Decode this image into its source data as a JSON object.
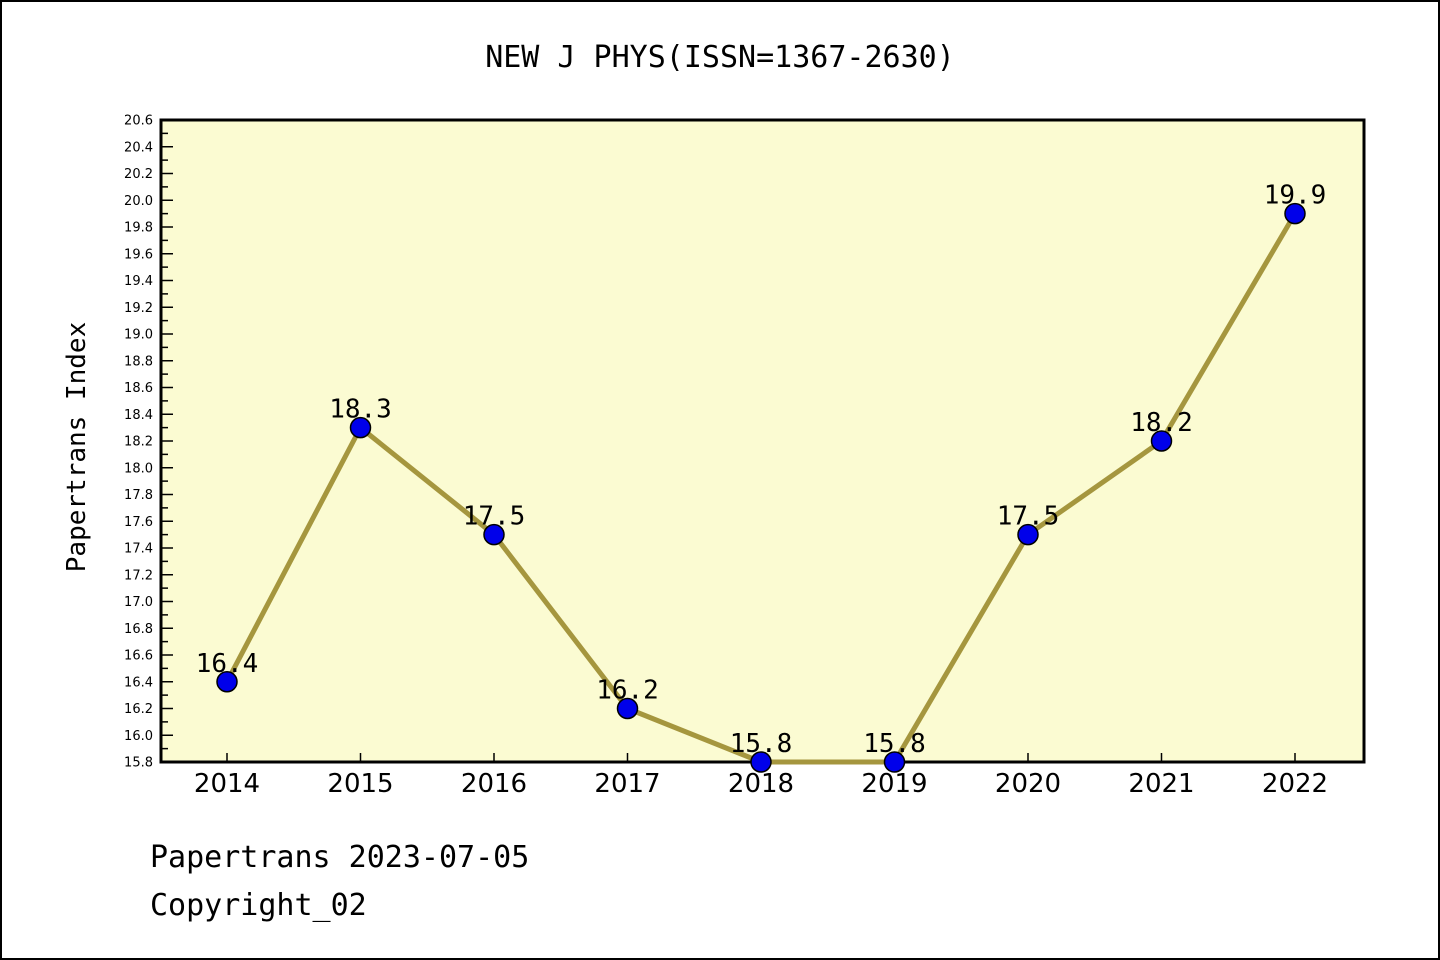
{
  "chart": {
    "footer": {
      "line1": "Papertrans 2023-07-05",
      "line2": "Copyright_02"
    }
  },
  "chart_data": {
    "type": "line",
    "title": "NEW J PHYS(ISSN=1367-2630)",
    "xlabel": "",
    "ylabel": "Papertrans Index",
    "x": [
      2014,
      2015,
      2016,
      2017,
      2018,
      2019,
      2020,
      2021,
      2022
    ],
    "series": [
      {
        "name": "Papertrans Index",
        "values": [
          16.4,
          18.3,
          17.5,
          16.2,
          15.8,
          15.8,
          17.5,
          18.2,
          19.9
        ]
      }
    ],
    "point_labels": [
      "16.4",
      "18.3",
      "17.5",
      "16.2",
      "15.8",
      "15.8",
      "17.5",
      "18.2",
      "19.9"
    ],
    "ylim": [
      15.8,
      20.6
    ],
    "y_major_step": 0.2,
    "y_minor_step": 0.1,
    "grid": false,
    "legend": false,
    "colors": {
      "line": "#A5963E",
      "marker_fill": "#0000EA",
      "marker_edge": "#000000",
      "plot_background": "#FBFBD2",
      "axis": "#000000",
      "text": "#000000"
    }
  }
}
